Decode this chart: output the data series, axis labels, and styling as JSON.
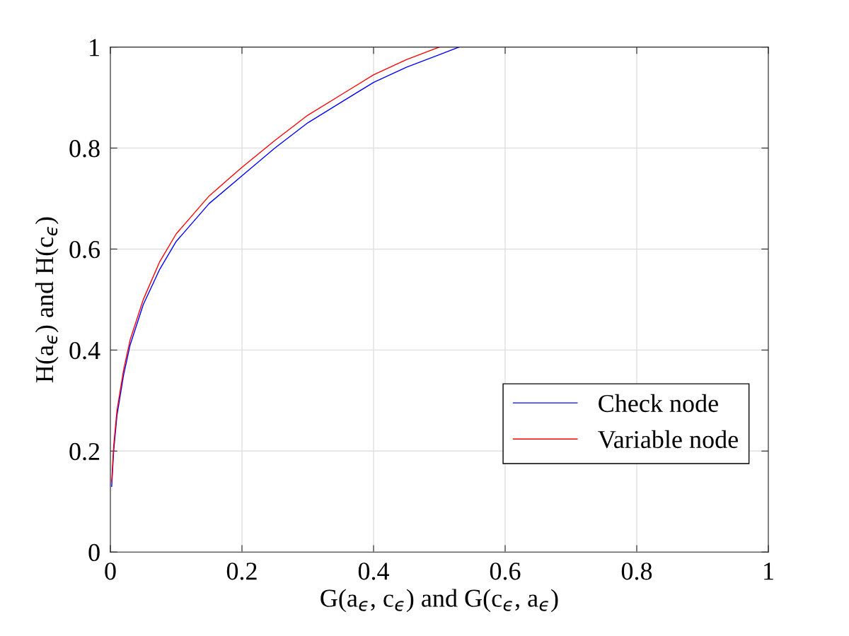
{
  "chart_data": {
    "type": "line",
    "xlabel": "G(a$_{ϵ}$, c$_{ϵ}$) and G(c$_{ϵ}$, a$_{ϵ}$)",
    "ylabel": "H(a$_{ϵ}$) and H(c$_{ϵ}$)",
    "xlim": [
      0,
      1
    ],
    "ylim": [
      0,
      1
    ],
    "xticks": [
      0,
      0.2,
      0.4,
      0.6,
      0.8,
      1
    ],
    "yticks": [
      0,
      0.2,
      0.4,
      0.6,
      0.8,
      1
    ],
    "grid": true,
    "legend": "lower right",
    "series": [
      {
        "name": "Check node",
        "color": "#0000ff",
        "x": [
          0.002,
          0.005,
          0.01,
          0.02,
          0.03,
          0.05,
          0.075,
          0.1,
          0.15,
          0.2,
          0.25,
          0.3,
          0.35,
          0.4,
          0.45,
          0.5,
          0.53
        ],
        "values": [
          0.13,
          0.2,
          0.27,
          0.35,
          0.41,
          0.49,
          0.56,
          0.615,
          0.69,
          0.745,
          0.8,
          0.85,
          0.89,
          0.93,
          0.96,
          0.985,
          1.0
        ]
      },
      {
        "name": "Variable node",
        "color": "#ff0000",
        "x": [
          0.002,
          0.005,
          0.01,
          0.02,
          0.03,
          0.05,
          0.075,
          0.1,
          0.15,
          0.2,
          0.25,
          0.3,
          0.35,
          0.4,
          0.45,
          0.5
        ],
        "values": [
          0.14,
          0.21,
          0.28,
          0.36,
          0.42,
          0.5,
          0.575,
          0.63,
          0.705,
          0.762,
          0.815,
          0.865,
          0.905,
          0.945,
          0.975,
          1.0
        ]
      }
    ]
  }
}
